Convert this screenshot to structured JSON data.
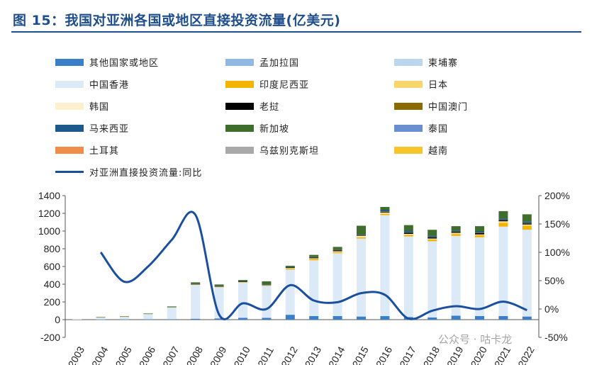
{
  "title": "图 15：我国对亚洲各国或地区直接投资流量(亿美元)",
  "watermark": "公众号 · 咕卡龙",
  "colors": {
    "title": "#1f4e8c",
    "line": "#1a4fa0"
  },
  "chart_data": {
    "type": "bar+line",
    "categories": [
      "2003",
      "2004",
      "2005",
      "2006",
      "2007",
      "2008",
      "2009",
      "2010",
      "2011",
      "2012",
      "2013",
      "2014",
      "2015",
      "2016",
      "2017",
      "2018",
      "2019",
      "2020",
      "2021",
      "2022"
    ],
    "y_left": {
      "min": -200,
      "max": 1400,
      "ticks": [
        "-200",
        "0",
        "200",
        "400",
        "600",
        "800",
        "1000",
        "1200",
        "1400"
      ],
      "tick_values": [
        -200,
        0,
        200,
        400,
        600,
        800,
        1000,
        1200,
        1400
      ]
    },
    "y_right": {
      "min": -0.5,
      "max": 2.0,
      "ticks": [
        "-50%",
        "0%",
        "50%",
        "100%",
        "150%",
        "200%"
      ],
      "tick_values": [
        -0.5,
        0,
        0.5,
        1.0,
        1.5,
        2.0
      ]
    },
    "grid": false,
    "legend_position": "top",
    "series": [
      {
        "name": "其他国家或地区",
        "color": "#3a7fc9",
        "type": "bar",
        "values": [
          0,
          2,
          3,
          4,
          5,
          10,
          14,
          20,
          20,
          55,
          40,
          40,
          35,
          40,
          30,
          25,
          45,
          40,
          40,
          35
        ]
      },
      {
        "name": "孟加拉国",
        "color": "#8fb9e3",
        "type": "bar",
        "values": [
          0,
          0,
          0,
          0,
          0,
          0,
          0,
          0,
          0,
          0,
          0,
          0,
          0,
          0,
          0,
          0,
          0,
          0,
          0,
          0
        ]
      },
      {
        "name": "柬埔寨",
        "color": "#bcd6ee",
        "type": "bar",
        "values": [
          0,
          0,
          0,
          0,
          0,
          0,
          0,
          0,
          0,
          0,
          0,
          0,
          0,
          0,
          0,
          0,
          0,
          0,
          0,
          0
        ]
      },
      {
        "name": "中国香港",
        "color": "#dce9f6",
        "type": "bar",
        "values": [
          10,
          25,
          32,
          60,
          135,
          385,
          355,
          400,
          360,
          510,
          630,
          710,
          880,
          1140,
          910,
          860,
          900,
          890,
          1010,
          980
        ]
      },
      {
        "name": "印度尼西亚",
        "color": "#f5b400",
        "type": "bar",
        "values": [
          0,
          1,
          1,
          1,
          1,
          2,
          2,
          2,
          5,
          14,
          16,
          12,
          15,
          15,
          17,
          19,
          22,
          22,
          44,
          45
        ]
      },
      {
        "name": "日本",
        "color": "#f9d66b",
        "type": "bar",
        "values": [
          0,
          0,
          0,
          1,
          2,
          2,
          2,
          3,
          2,
          2,
          4,
          4,
          2,
          4,
          4,
          5,
          7,
          5,
          8,
          7
        ]
      },
      {
        "name": "韩国",
        "color": "#fdf1cd",
        "type": "bar",
        "values": [
          2,
          1,
          2,
          1,
          1,
          2,
          2,
          2,
          2,
          2,
          3,
          6,
          13,
          10,
          7,
          7,
          6,
          5,
          8,
          7
        ]
      },
      {
        "name": "老挝",
        "color": "#000000",
        "type": "bar",
        "values": [
          0,
          0,
          0,
          0,
          0,
          1,
          2,
          2,
          5,
          8,
          8,
          10,
          5,
          3,
          12,
          12,
          11,
          14,
          13,
          10
        ]
      },
      {
        "name": "中国澳门",
        "color": "#8a6b00",
        "type": "bar",
        "values": [
          0,
          0,
          0,
          0,
          0,
          2,
          5,
          5,
          4,
          0,
          4,
          6,
          5,
          10,
          7,
          5,
          5,
          6,
          5,
          6
        ]
      },
      {
        "name": "马来西亚",
        "color": "#1c5a8c",
        "type": "bar",
        "values": [
          0,
          0,
          0,
          1,
          1,
          1,
          1,
          2,
          1,
          2,
          6,
          5,
          5,
          18,
          17,
          17,
          11,
          14,
          13,
          16
        ]
      },
      {
        "name": "新加坡",
        "color": "#3f6d2b",
        "type": "bar",
        "values": [
          0,
          1,
          1,
          1,
          4,
          16,
          14,
          11,
          33,
          15,
          20,
          28,
          100,
          32,
          63,
          64,
          48,
          59,
          84,
          83
        ]
      },
      {
        "name": "泰国",
        "color": "#6a8fd0",
        "type": "bar",
        "values": [
          0,
          0,
          0,
          0,
          0,
          0,
          0,
          0,
          0,
          0,
          0,
          0,
          0,
          0,
          0,
          0,
          0,
          0,
          0,
          0
        ]
      },
      {
        "name": "土耳其",
        "color": "#f08d49",
        "type": "bar",
        "values": [
          0,
          0,
          0,
          0,
          0,
          0,
          0,
          0,
          0,
          0,
          0,
          0,
          0,
          0,
          0,
          0,
          0,
          0,
          0,
          0
        ]
      },
      {
        "name": "乌兹别克斯坦",
        "color": "#a9a9a9",
        "type": "bar",
        "values": [
          0,
          0,
          0,
          0,
          0,
          0,
          0,
          0,
          0,
          0,
          0,
          0,
          0,
          0,
          0,
          0,
          0,
          0,
          0,
          0
        ]
      },
      {
        "name": "越南",
        "color": "#f7c52b",
        "type": "bar",
        "values": [
          0,
          0,
          0,
          0,
          0,
          0,
          0,
          0,
          0,
          0,
          0,
          0,
          0,
          0,
          0,
          0,
          0,
          0,
          0,
          0
        ]
      },
      {
        "name": "对亚洲直接投资流量:同比",
        "color": "#1a4fa0",
        "type": "line",
        "axis": "right",
        "values": [
          null,
          1.0,
          0.48,
          0.75,
          1.22,
          1.66,
          -0.1,
          0.1,
          0.0,
          0.42,
          0.15,
          0.12,
          0.28,
          0.25,
          -0.17,
          -0.03,
          0.05,
          0.0,
          0.13,
          -0.02
        ]
      }
    ]
  }
}
